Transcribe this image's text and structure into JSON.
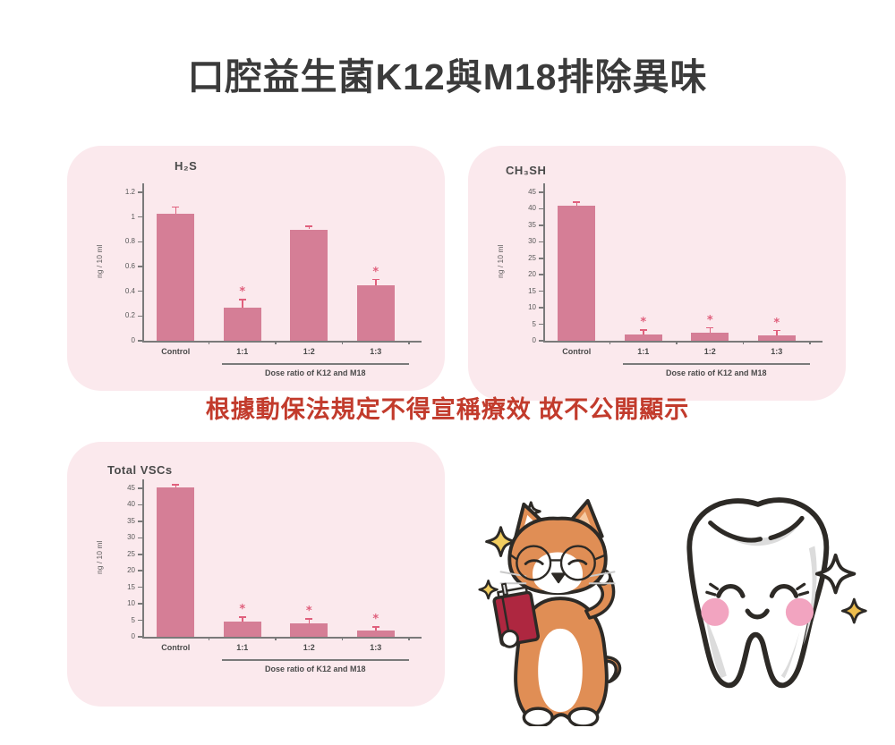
{
  "page": {
    "title": "口腔益生菌K12與M18排除異味",
    "notice": "根據動保法規定不得宣稱療效 故不公開顯示"
  },
  "colors": {
    "panel_bg": "#fbe9ed",
    "bar": "#d57e96",
    "error_bar": "#e0607d",
    "axis": "#7a7a7a",
    "tick_text": "#5a5a5a",
    "label_text": "#4a4a4a",
    "notice_red": "#c23b2c",
    "title_text": "#3b3b3b",
    "sparkle_yellow": "#f0c categories"
  },
  "significance_marker": "*",
  "chart_data": [
    {
      "type": "bar",
      "title": "H₂S",
      "ylabel": "ng / 10 ml",
      "xlabel": "Dose ratio of K12 and M18",
      "categories": [
        "Control",
        "1:1",
        "1:2",
        "1:3"
      ],
      "values": [
        1.03,
        0.27,
        0.9,
        0.45
      ],
      "errors": [
        0.05,
        0.06,
        0.025,
        0.045
      ],
      "significant": [
        false,
        true,
        false,
        true
      ],
      "yticks": [
        0,
        0.2,
        0.4,
        0.6,
        0.8,
        1,
        1.2
      ],
      "ylim": [
        0,
        1.2
      ],
      "grid": false,
      "legend": "none"
    },
    {
      "type": "bar",
      "title": "CH₃SH",
      "ylabel": "ng / 10 ml",
      "xlabel": "Dose ratio of K12 and M18",
      "categories": [
        "Control",
        "1:1",
        "1:2",
        "1:3"
      ],
      "values": [
        41,
        2,
        2.5,
        1.5
      ],
      "errors": [
        1,
        1.2,
        1.4,
        1.6
      ],
      "significant": [
        false,
        true,
        true,
        true
      ],
      "yticks": [
        0,
        5,
        10,
        15,
        20,
        25,
        30,
        35,
        40,
        45
      ],
      "ylim": [
        0,
        45
      ],
      "grid": false,
      "legend": "none"
    },
    {
      "type": "bar",
      "title": "Total VSCs",
      "ylabel": "ng / 10 ml",
      "xlabel": "Dose ratio of K12 and M18",
      "categories": [
        "Control",
        "1:1",
        "1:2",
        "1:3"
      ],
      "values": [
        45.3,
        4.5,
        4,
        1.8
      ],
      "errors": [
        0.8,
        1.4,
        1.3,
        1.1
      ],
      "significant": [
        false,
        true,
        true,
        true
      ],
      "yticks": [
        0,
        5,
        10,
        15,
        20,
        25,
        30,
        35,
        40,
        45
      ],
      "ylim": [
        0,
        45
      ],
      "grid": false,
      "legend": "none"
    }
  ],
  "illustration": {
    "dog": "shiba-dog-reading-red-book-with-glasses",
    "tooth": "smiling-tooth-character",
    "sparkles": "four-point-sparkles"
  }
}
